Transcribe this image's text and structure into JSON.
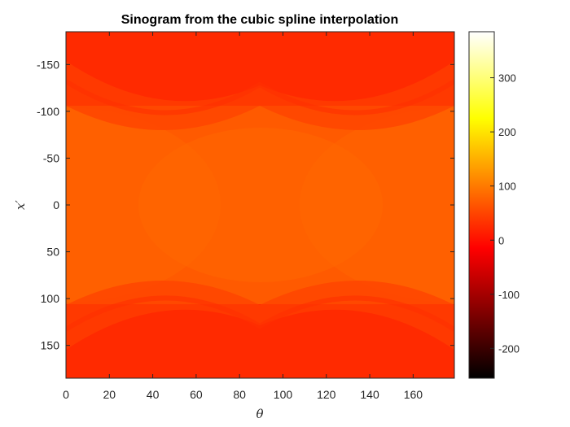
{
  "chart_data": {
    "type": "heatmap",
    "title": "Sinogram from the cubic spline interpolation",
    "xlabel": "θ",
    "ylabel": "x′",
    "xlim": [
      0,
      179
    ],
    "ylim": [
      -185,
      185
    ],
    "y_reversed": true,
    "x_ticks": [
      0,
      20,
      40,
      60,
      80,
      100,
      120,
      140,
      160
    ],
    "y_ticks": [
      -150,
      -100,
      -50,
      0,
      50,
      100,
      150
    ],
    "colormap": "hot",
    "clim": [
      -255,
      385
    ],
    "colorbar_ticks": [
      -200,
      -100,
      0,
      100,
      200,
      300
    ],
    "colorbar_location": "right",
    "grid": false,
    "colors": {
      "axis": "#262626",
      "background": "#ffffff"
    }
  }
}
